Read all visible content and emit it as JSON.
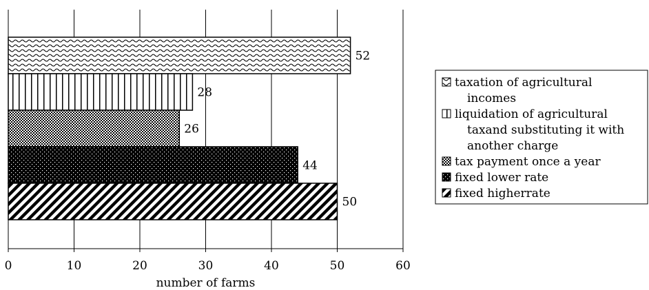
{
  "chart_data": {
    "type": "bar",
    "orientation": "horizontal",
    "xlabel": "number of farms",
    "xlim": [
      0,
      60
    ],
    "xticks": [
      0,
      10,
      20,
      30,
      40,
      50,
      60
    ],
    "grid": "vertical",
    "legend_position": "right",
    "series": [
      {
        "name": "taxation of agricultural incomes",
        "legend_lines": [
          "taxation of agricultural",
          "incomes"
        ],
        "value": 52,
        "pattern": "wave-icon"
      },
      {
        "name": "liquidation of agricultural taxand substituting it with another charge",
        "legend_lines": [
          "liquidation of agricultural",
          "taxand substituting it with",
          "another charge"
        ],
        "value": 28,
        "pattern": "vertical-stripes-icon"
      },
      {
        "name": "tax payment once a year",
        "legend_lines": [
          "tax payment once a year"
        ],
        "value": 26,
        "pattern": "checker-icon"
      },
      {
        "name": "fixed lower rate",
        "legend_lines": [
          "fixed lower rate"
        ],
        "value": 44,
        "pattern": "dark-dots-icon"
      },
      {
        "name": "fixed higherrate",
        "legend_lines": [
          "fixed higherrate"
        ],
        "value": 50,
        "pattern": "diagonal-stripes-icon"
      }
    ]
  }
}
